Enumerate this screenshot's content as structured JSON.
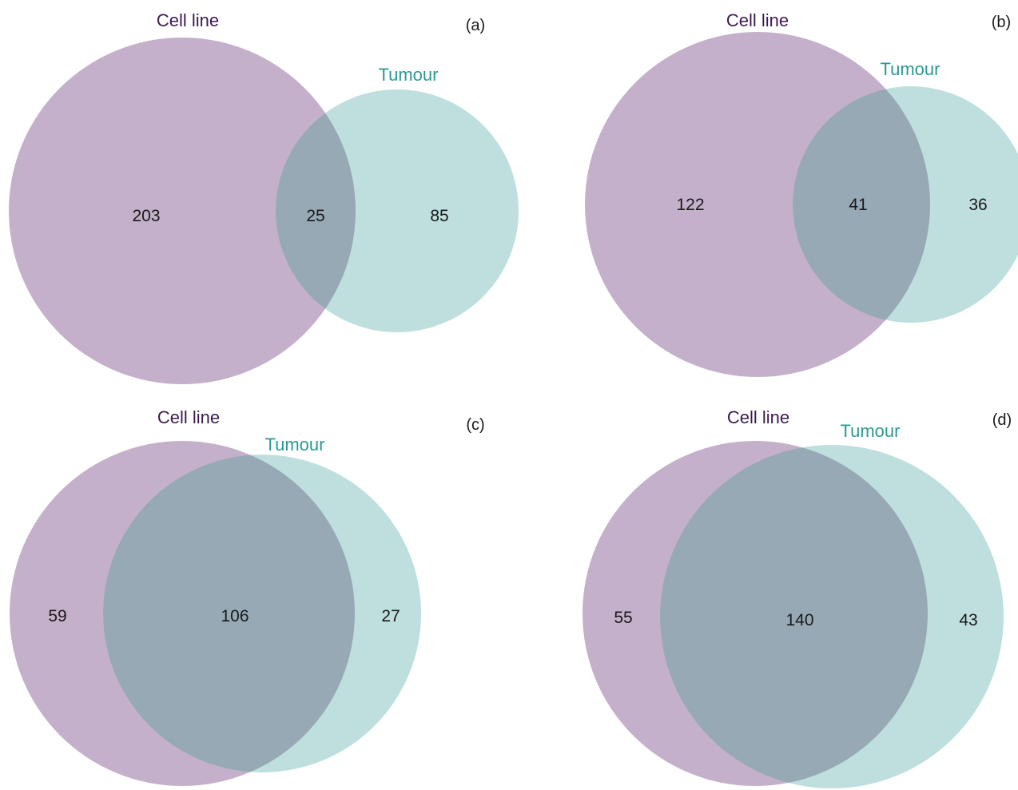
{
  "colors": {
    "cell_line_fill": "#c4b0ca",
    "tumour_fill": "#bfdfde",
    "overlap_fill": "#96a9b5",
    "cell_line_label": "#3d1a4f",
    "tumour_label": "#2a9a92"
  },
  "panels": [
    {
      "tag": "(a)",
      "cell_line_label": "Cell line",
      "tumour_label": "Tumour",
      "cell_line_only": "203",
      "overlap": "25",
      "tumour_only": "85"
    },
    {
      "tag": "(b)",
      "cell_line_label": "Cell line",
      "tumour_label": "Tumour",
      "cell_line_only": "122",
      "overlap": "41",
      "tumour_only": "36"
    },
    {
      "tag": "(c)",
      "cell_line_label": "Cell line",
      "tumour_label": "Tumour",
      "cell_line_only": "59",
      "overlap": "106",
      "tumour_only": "27"
    },
    {
      "tag": "(d)",
      "cell_line_label": "Cell line",
      "tumour_label": "Tumour",
      "cell_line_only": "55",
      "overlap": "140",
      "tumour_only": "43"
    }
  ]
}
